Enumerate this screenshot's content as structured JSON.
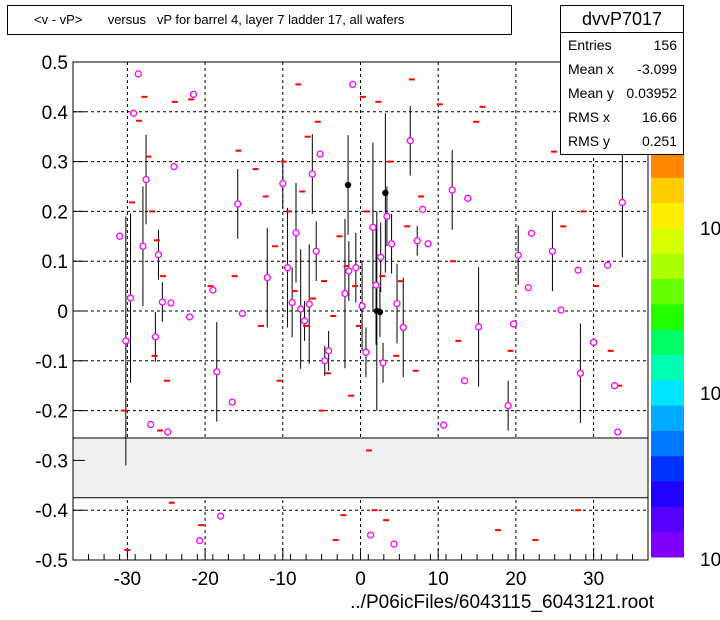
{
  "title_text": "<v - vP>       versus   vP for barrel 4, layer 7 ladder 17, all wafers",
  "stats": {
    "name": "dvvP7017",
    "rows": [
      {
        "label": "Entries",
        "value": "156"
      },
      {
        "label": "Mean x",
        "value": "-3.099"
      },
      {
        "label": "Mean y",
        "value": "0.03952"
      },
      {
        "label": "RMS x",
        "value": "16.66"
      },
      {
        "label": "RMS y",
        "value": "0.251"
      }
    ]
  },
  "footer_text": "../P06icFiles/6043115_6043121.root",
  "colors": {
    "marker": "#ff00ff",
    "dash": "#ff0000",
    "error_bar": "#000000",
    "band": "#f0f0f0",
    "grid": "#000000"
  },
  "chart_data": {
    "type": "scatter",
    "title": "<v - vP>       versus   vP for barrel 4, layer 7 ladder 17, all wafers",
    "xlim": [
      -37,
      37
    ],
    "ylim": [
      -0.5,
      0.5
    ],
    "x_ticks": [
      -30,
      -20,
      -10,
      0,
      10,
      20,
      30
    ],
    "y_ticks": [
      -0.5,
      -0.4,
      -0.3,
      -0.2,
      -0.1,
      0,
      0.1,
      0.2,
      0.3,
      0.4,
      0.5
    ],
    "y_tick_labels": [
      "-0.5",
      "-0.4",
      "-0.3",
      "-0.2",
      "-0.1",
      "0",
      "0.1",
      "0.2",
      "0.3",
      "0.4",
      "0.5"
    ],
    "grid": true,
    "excluded_band": [
      -0.375,
      -0.255
    ],
    "colorbar": {
      "labels": [
        "10",
        "10",
        "10"
      ],
      "colors": [
        "#7f00ff",
        "#5500ff",
        "#2200ff",
        "#0033ff",
        "#0077ff",
        "#00aaff",
        "#00e5ff",
        "#00ffb0",
        "#00ff66",
        "#22ff00",
        "#66ff00",
        "#aaff00",
        "#d8ff00",
        "#ffee00",
        "#ffcc00",
        "#ff8800"
      ]
    },
    "points": [
      {
        "x": -31,
        "y": 0.15,
        "err": 0
      },
      {
        "x": -30.2,
        "y": -0.06,
        "err": 0.25
      },
      {
        "x": -29.6,
        "y": 0.026,
        "err": 0.17
      },
      {
        "x": -29.2,
        "y": 0.397,
        "err": 0
      },
      {
        "x": -28.6,
        "y": 0.476,
        "err": 0
      },
      {
        "x": -28,
        "y": 0.13,
        "err": 0.12
      },
      {
        "x": -27.6,
        "y": 0.264,
        "err": 0.09
      },
      {
        "x": -27,
        "y": -0.228,
        "err": 0
      },
      {
        "x": -26.4,
        "y": -0.052,
        "err": 0.05
      },
      {
        "x": -26,
        "y": 0.113,
        "err": 0.05
      },
      {
        "x": -25.5,
        "y": 0.018,
        "err": 0.04
      },
      {
        "x": -24.8,
        "y": -0.243,
        "err": 0
      },
      {
        "x": -24.4,
        "y": 0.016,
        "err": 0
      },
      {
        "x": -24,
        "y": 0.29,
        "err": 0
      },
      {
        "x": -22,
        "y": -0.012,
        "err": 0
      },
      {
        "x": -21.5,
        "y": 0.435,
        "err": 0
      },
      {
        "x": -20.7,
        "y": -0.461,
        "err": 0
      },
      {
        "x": -19,
        "y": 0.042,
        "err": 0
      },
      {
        "x": -18.5,
        "y": -0.122,
        "err": 0.1
      },
      {
        "x": -18,
        "y": -0.412,
        "err": 0
      },
      {
        "x": -16.5,
        "y": -0.183,
        "err": 0
      },
      {
        "x": -15.8,
        "y": 0.215,
        "err": 0.07
      },
      {
        "x": -15.2,
        "y": -0.005,
        "err": 0
      },
      {
        "x": -12,
        "y": 0.067,
        "err": 0.1
      },
      {
        "x": -10,
        "y": 0.256,
        "err": 0.05
      },
      {
        "x": -9.4,
        "y": 0.087,
        "err": 0.12
      },
      {
        "x": -8.8,
        "y": 0.017,
        "err": 0.07
      },
      {
        "x": -8.3,
        "y": 0.157,
        "err": 0.1
      },
      {
        "x": -7.7,
        "y": 0.004,
        "err": 0.12
      },
      {
        "x": -7.2,
        "y": -0.02,
        "err": 0.04
      },
      {
        "x": -6.6,
        "y": 0.014,
        "err": 0.12
      },
      {
        "x": -6.2,
        "y": 0.275,
        "err": 0.08
      },
      {
        "x": -5.7,
        "y": 0.12,
        "err": 0.06
      },
      {
        "x": -5.2,
        "y": 0.315,
        "err": 0
      },
      {
        "x": -4.6,
        "y": -0.1,
        "err": 0.03
      },
      {
        "x": -4.1,
        "y": -0.08,
        "err": 0.04
      },
      {
        "x": -2,
        "y": 0.035,
        "err": 0.15
      },
      {
        "x": -1.5,
        "y": 0.08,
        "err": 0.06
      },
      {
        "x": -1,
        "y": 0.455,
        "err": 0
      },
      {
        "x": -0.6,
        "y": 0.087,
        "err": 0.07
      },
      {
        "x": 0.2,
        "y": 0.01,
        "err": 0.09
      },
      {
        "x": 0.7,
        "y": -0.083,
        "err": 0.05
      },
      {
        "x": 1.3,
        "y": -0.45,
        "err": 0
      },
      {
        "x": 1.6,
        "y": 0.168,
        "err": 0.17
      },
      {
        "x": 2,
        "y": 0.052,
        "err": 0.12
      },
      {
        "x": 2.6,
        "y": 0.108,
        "err": 0.07
      },
      {
        "x": 2.9,
        "y": -0.104,
        "err": 0.04
      },
      {
        "x": 3.4,
        "y": 0.19,
        "err": 0.06
      },
      {
        "x": 4,
        "y": 0.135,
        "err": 0.06
      },
      {
        "x": 4.3,
        "y": -0.468,
        "err": 0
      },
      {
        "x": 4.7,
        "y": 0.015,
        "err": 0.08
      },
      {
        "x": 5.5,
        "y": -0.033,
        "err": 0.1
      },
      {
        "x": 6.4,
        "y": 0.342,
        "err": 0.07
      },
      {
        "x": 7.3,
        "y": 0.141,
        "err": 0.03
      },
      {
        "x": 8,
        "y": 0.204,
        "err": 0
      },
      {
        "x": 8.7,
        "y": 0.135,
        "err": 0
      },
      {
        "x": 10.7,
        "y": -0.229,
        "err": 0
      },
      {
        "x": 11.8,
        "y": 0.243,
        "err": 0.08
      },
      {
        "x": 13.4,
        "y": -0.14,
        "err": 0
      },
      {
        "x": 13.8,
        "y": 0.226,
        "err": 0
      },
      {
        "x": 15.2,
        "y": -0.032,
        "err": 0.12
      },
      {
        "x": 19,
        "y": -0.19,
        "err": 0.05
      },
      {
        "x": 19.7,
        "y": -0.026,
        "err": 0
      },
      {
        "x": 20.3,
        "y": 0.112,
        "err": 0.06
      },
      {
        "x": 21.6,
        "y": 0.047,
        "err": 0
      },
      {
        "x": 22,
        "y": 0.156,
        "err": 0
      },
      {
        "x": 24.7,
        "y": 0.12,
        "err": 0.08
      },
      {
        "x": 25.8,
        "y": 0.002,
        "err": 0
      },
      {
        "x": 28,
        "y": 0.082,
        "err": 0
      },
      {
        "x": 28.3,
        "y": -0.125,
        "err": 0.1
      },
      {
        "x": 30,
        "y": -0.063,
        "err": 0
      },
      {
        "x": 31.5,
        "y": 0.46,
        "err": 0
      },
      {
        "x": 31.8,
        "y": 0.092,
        "err": 0
      },
      {
        "x": 32.7,
        "y": -0.15,
        "err": 0
      },
      {
        "x": 33.1,
        "y": -0.243,
        "err": 0
      },
      {
        "x": 33.7,
        "y": 0.218,
        "err": 0.11
      }
    ],
    "black_points": [
      {
        "x": -1.6,
        "y": 0.253,
        "err": 0.1
      },
      {
        "x": 2.1,
        "y": 0,
        "err": 0.2
      },
      {
        "x": 2.5,
        "y": -0.002,
        "err": 0.05
      },
      {
        "x": 3.2,
        "y": 0.237,
        "err": 0.16
      }
    ],
    "dashes": [
      {
        "x": -30.4,
        "y": -0.2
      },
      {
        "x": -30,
        "y": -0.48
      },
      {
        "x": -29.4,
        "y": 0.218
      },
      {
        "x": -28.5,
        "y": 0.382
      },
      {
        "x": -27.8,
        "y": 0.43
      },
      {
        "x": -27.3,
        "y": 0.31
      },
      {
        "x": -26.8,
        "y": 0.2
      },
      {
        "x": -26.5,
        "y": -0.09
      },
      {
        "x": -26.2,
        "y": 0.142
      },
      {
        "x": -25.8,
        "y": -0.24
      },
      {
        "x": -25.4,
        "y": 0.07
      },
      {
        "x": -24.9,
        "y": -0.14
      },
      {
        "x": -24.3,
        "y": -0.385
      },
      {
        "x": -23.9,
        "y": 0.42
      },
      {
        "x": -21.8,
        "y": 0.425
      },
      {
        "x": -20.5,
        "y": -0.43
      },
      {
        "x": -19.3,
        "y": 0.05
      },
      {
        "x": -16.2,
        "y": 0.07
      },
      {
        "x": -15.7,
        "y": 0.322
      },
      {
        "x": -13.5,
        "y": 0.285
      },
      {
        "x": -12.8,
        "y": -0.03
      },
      {
        "x": -12.2,
        "y": 0.23
      },
      {
        "x": -11,
        "y": 0.13
      },
      {
        "x": -10.4,
        "y": -0.14
      },
      {
        "x": -9.9,
        "y": 0.3
      },
      {
        "x": -9.2,
        "y": 0.2
      },
      {
        "x": -8.5,
        "y": 0.04
      },
      {
        "x": -8,
        "y": 0.455
      },
      {
        "x": -7.5,
        "y": 0.24
      },
      {
        "x": -7,
        "y": -0.03
      },
      {
        "x": -6.8,
        "y": 0.35
      },
      {
        "x": -6.1,
        "y": 0.025
      },
      {
        "x": -5.5,
        "y": 0.38
      },
      {
        "x": -5,
        "y": -0.2
      },
      {
        "x": -4.7,
        "y": 0.06
      },
      {
        "x": -4.2,
        "y": -0.125
      },
      {
        "x": -3.5,
        "y": -0.01
      },
      {
        "x": -3.2,
        "y": -0.46
      },
      {
        "x": -2.7,
        "y": 0.15
      },
      {
        "x": -2.2,
        "y": -0.41
      },
      {
        "x": -1.8,
        "y": 0.09
      },
      {
        "x": -1.2,
        "y": -0.17
      },
      {
        "x": -0.7,
        "y": 0.05
      },
      {
        "x": -0.2,
        "y": -0.03
      },
      {
        "x": 0.3,
        "y": 0.43
      },
      {
        "x": 0.8,
        "y": 0.2
      },
      {
        "x": 1.1,
        "y": -0.28
      },
      {
        "x": 1.8,
        "y": -0.4
      },
      {
        "x": 2.3,
        "y": 0.42
      },
      {
        "x": 2.8,
        "y": 0.07
      },
      {
        "x": 3.3,
        "y": -0.42
      },
      {
        "x": 3.8,
        "y": 0.3
      },
      {
        "x": 4.6,
        "y": -0.09
      },
      {
        "x": 5.2,
        "y": 0.06
      },
      {
        "x": 6,
        "y": 0.17
      },
      {
        "x": 6.6,
        "y": 0.465
      },
      {
        "x": 7.1,
        "y": -0.12
      },
      {
        "x": 7.8,
        "y": 0.23
      },
      {
        "x": 10.2,
        "y": 0.415
      },
      {
        "x": 11.9,
        "y": 0.1
      },
      {
        "x": 12.6,
        "y": -0.06
      },
      {
        "x": 14.9,
        "y": 0.38
      },
      {
        "x": 15.7,
        "y": 0.41
      },
      {
        "x": 17.7,
        "y": -0.44
      },
      {
        "x": 19.3,
        "y": -0.08
      },
      {
        "x": 22.5,
        "y": -0.46
      },
      {
        "x": 24.9,
        "y": 0.32
      },
      {
        "x": 26.1,
        "y": 0.17
      },
      {
        "x": 28,
        "y": -0.4
      },
      {
        "x": 28.7,
        "y": 0.2
      },
      {
        "x": 30.3,
        "y": 0.05
      },
      {
        "x": 32.2,
        "y": -0.08
      },
      {
        "x": 33.3,
        "y": -0.15
      },
      {
        "x": 33.6,
        "y": 0.32
      }
    ]
  }
}
